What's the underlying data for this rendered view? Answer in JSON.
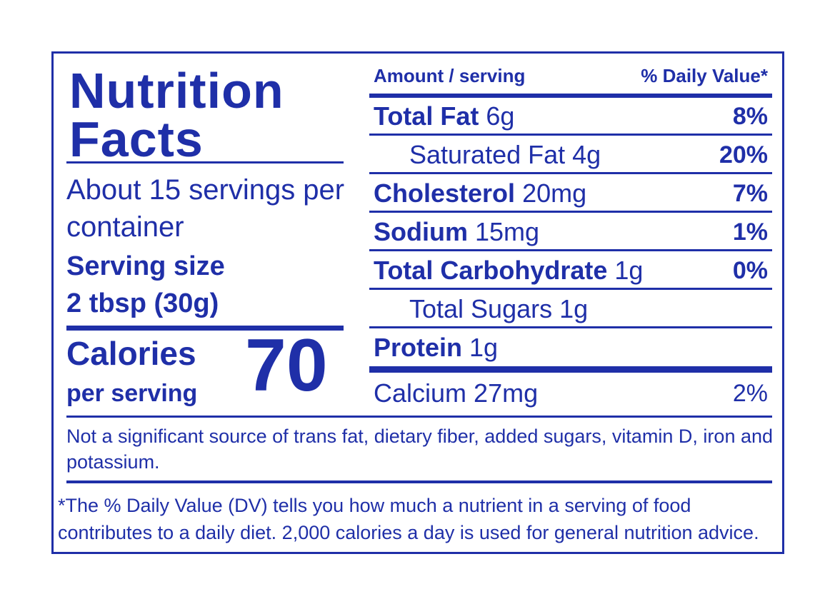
{
  "brand_color": "#1f2fa8",
  "title": "Nutrition Facts",
  "servings_per_container": "About 15 servings per container",
  "serving_size_label": "Serving size",
  "serving_size_value": "2 tbsp (30g)",
  "calories": {
    "label": "Calories",
    "sub_label": "per serving",
    "value": "70"
  },
  "table_header": {
    "amount": "Amount / serving",
    "daily_value": "% Daily Value*"
  },
  "nutrients": [
    {
      "name": "Total Fat",
      "amount": "6g",
      "dv": "8%"
    },
    {
      "name": "Saturated Fat",
      "amount": "4g",
      "dv": "20%"
    },
    {
      "name": "Cholesterol",
      "amount": "20mg",
      "dv": "7%"
    },
    {
      "name": "Sodium",
      "amount": "15mg",
      "dv": "1%"
    },
    {
      "name": "Total Carbohydrate",
      "amount": "1g",
      "dv": "0%"
    },
    {
      "name": "Total Sugars",
      "amount": "1g",
      "dv": ""
    },
    {
      "name": "Protein",
      "amount": "1g",
      "dv": ""
    },
    {
      "name": "Calcium",
      "amount": "27mg",
      "dv": "2%"
    }
  ],
  "not_significant": "Not a significant source of trans fat, dietary fiber, added sugars, vitamin D, iron and potassium.",
  "dv_footnote": "*The % Daily Value (DV) tells you how much a nutrient in a serving of food contributes to a daily diet. 2,000 calories a day is used for general nutrition advice."
}
